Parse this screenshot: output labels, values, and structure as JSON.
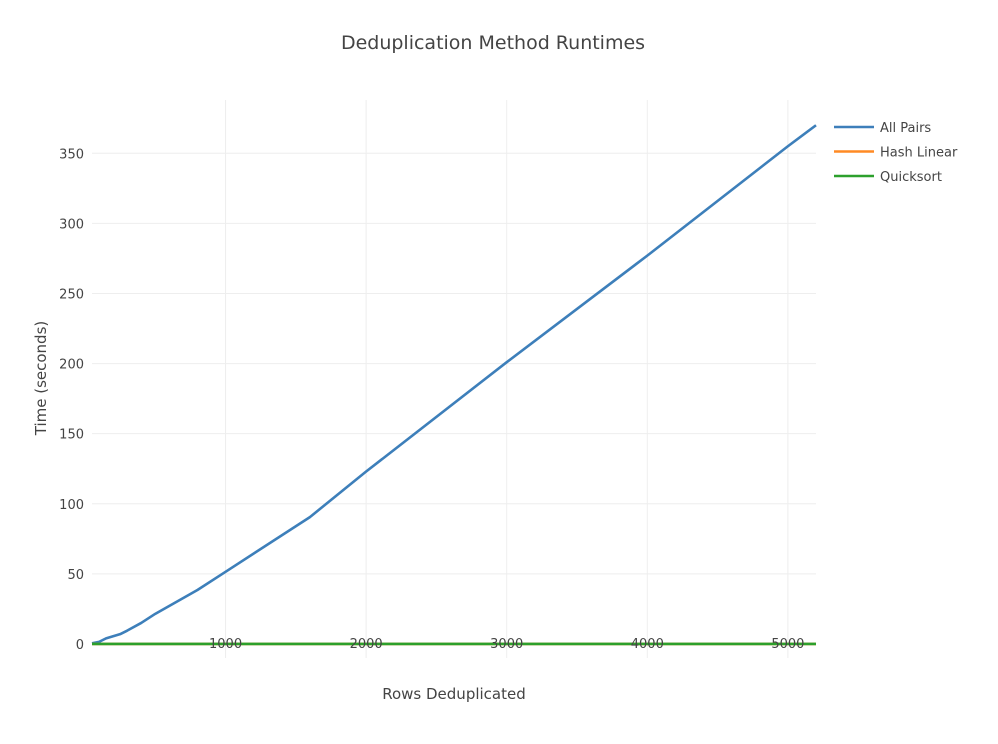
{
  "chart_data": {
    "type": "line",
    "title": "Deduplication Method Runtimes",
    "xlabel": "Rows Deduplicated",
    "ylabel": "Time (seconds)",
    "xlim": [
      50,
      5200
    ],
    "ylim": [
      -10,
      388
    ],
    "x_ticks": [
      1000,
      2000,
      3000,
      4000,
      5000
    ],
    "y_ticks": [
      0,
      50,
      100,
      150,
      200,
      250,
      300,
      350
    ],
    "grid": true,
    "legend_position": "top-right",
    "series": [
      {
        "name": "All Pairs",
        "color": "#3d7fba",
        "points": [
          [
            50,
            0.5
          ],
          [
            100,
            1.5
          ],
          [
            150,
            4
          ],
          [
            200,
            5.5
          ],
          [
            250,
            7
          ],
          [
            300,
            9.5
          ],
          [
            400,
            15
          ],
          [
            500,
            21.5
          ],
          [
            800,
            38.5
          ],
          [
            1000,
            51.5
          ],
          [
            1600,
            90.5
          ],
          [
            2000,
            123
          ],
          [
            3000,
            201
          ],
          [
            4000,
            277
          ],
          [
            5000,
            355
          ],
          [
            5200,
            370
          ]
        ]
      },
      {
        "name": "Hash Linear",
        "color": "#ff8a24",
        "points": [
          [
            50,
            0
          ],
          [
            100,
            0
          ],
          [
            500,
            0
          ],
          [
            1000,
            0
          ],
          [
            2000,
            0
          ],
          [
            3000,
            0
          ],
          [
            4000,
            0
          ],
          [
            5000,
            0
          ],
          [
            5200,
            0
          ]
        ]
      },
      {
        "name": "Quicksort",
        "color": "#2ca02c",
        "points": [
          [
            50,
            0
          ],
          [
            100,
            0
          ],
          [
            500,
            0
          ],
          [
            1000,
            0
          ],
          [
            2000,
            0
          ],
          [
            3000,
            0
          ],
          [
            4000,
            0
          ],
          [
            5000,
            0
          ],
          [
            5200,
            0
          ]
        ]
      }
    ]
  }
}
